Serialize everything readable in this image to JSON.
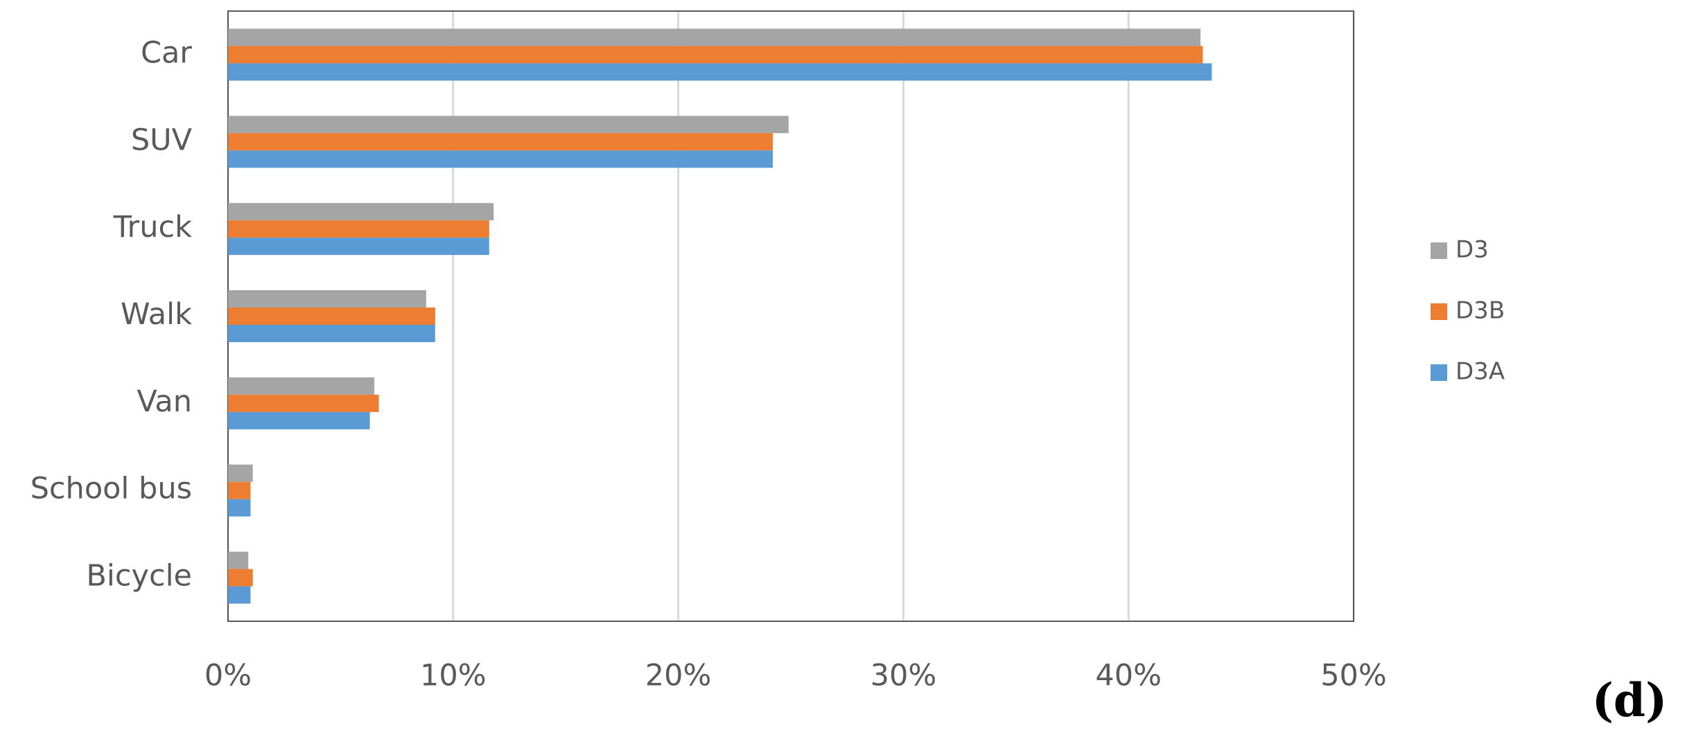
{
  "chart_data": {
    "type": "hbar",
    "categories": [
      "Car",
      "SUV",
      "Truck",
      "Walk",
      "Van",
      "School bus",
      "Bicycle"
    ],
    "series": [
      {
        "name": "D3",
        "color": "#a5a5a5",
        "values": [
          43.2,
          24.9,
          11.8,
          8.8,
          6.5,
          1.1,
          0.9
        ]
      },
      {
        "name": "D3B",
        "color": "#ed7d31",
        "values": [
          43.3,
          24.2,
          11.6,
          9.2,
          6.7,
          1.0,
          1.1
        ]
      },
      {
        "name": "D3A",
        "color": "#5b9bd5",
        "values": [
          43.7,
          24.2,
          11.6,
          9.2,
          6.3,
          1.0,
          1.0
        ]
      }
    ],
    "xlim": [
      0,
      50
    ],
    "xticks": [
      {
        "value": 0,
        "label": "0%"
      },
      {
        "value": 10,
        "label": "10%"
      },
      {
        "value": 20,
        "label": "20%"
      },
      {
        "value": 30,
        "label": "30%"
      },
      {
        "value": 40,
        "label": "40%"
      },
      {
        "value": 50,
        "label": "50%"
      }
    ],
    "grid": true,
    "legend": "right",
    "annotation": "(d)"
  }
}
